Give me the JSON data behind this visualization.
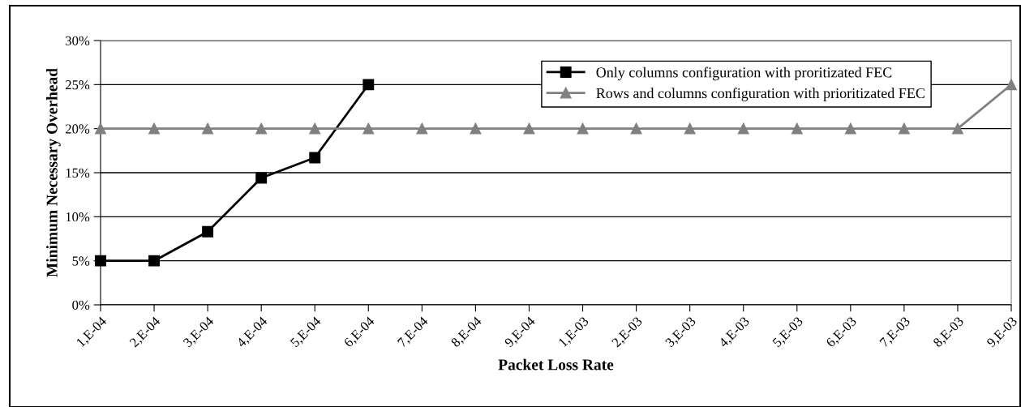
{
  "chart_data": {
    "type": "line",
    "categories": [
      "1,E-04",
      "2,E-04",
      "3,E-04",
      "4,E-04",
      "5,E-04",
      "6,E-04",
      "7,E-04",
      "8,E-04",
      "9,E-04",
      "1,E-03",
      "2,E-03",
      "3,E-03",
      "4,E-03",
      "5,E-03",
      "6,E-03",
      "7,E-03",
      "8,E-03",
      "9,E-03"
    ],
    "series": [
      {
        "name": "Only columns configuration with proritizated FEC",
        "color": "#000000",
        "marker": "square",
        "values": [
          5,
          5,
          8.3,
          14.4,
          16.7,
          25,
          null,
          null,
          null,
          null,
          null,
          null,
          null,
          null,
          null,
          null,
          null,
          null
        ]
      },
      {
        "name": "Rows and columns configuration with prioritizated FEC",
        "color": "#808080",
        "marker": "triangle",
        "values": [
          20,
          20,
          20,
          20,
          20,
          20,
          20,
          20,
          20,
          20,
          20,
          20,
          20,
          20,
          20,
          20,
          20,
          25
        ]
      }
    ],
    "xlabel": "Packet Loss Rate",
    "ylabel": "Minimum Necessary Overhead",
    "ylim": [
      0,
      30
    ],
    "yticks": [
      {
        "value": 0,
        "label": "0%"
      },
      {
        "value": 5,
        "label": "5%"
      },
      {
        "value": 10,
        "label": "10%"
      },
      {
        "value": 15,
        "label": "15%"
      },
      {
        "value": 20,
        "label": "20%"
      },
      {
        "value": 25,
        "label": "25%"
      },
      {
        "value": 30,
        "label": "30%"
      }
    ],
    "grid": "y",
    "legend": "top right",
    "line_style": "solid"
  }
}
